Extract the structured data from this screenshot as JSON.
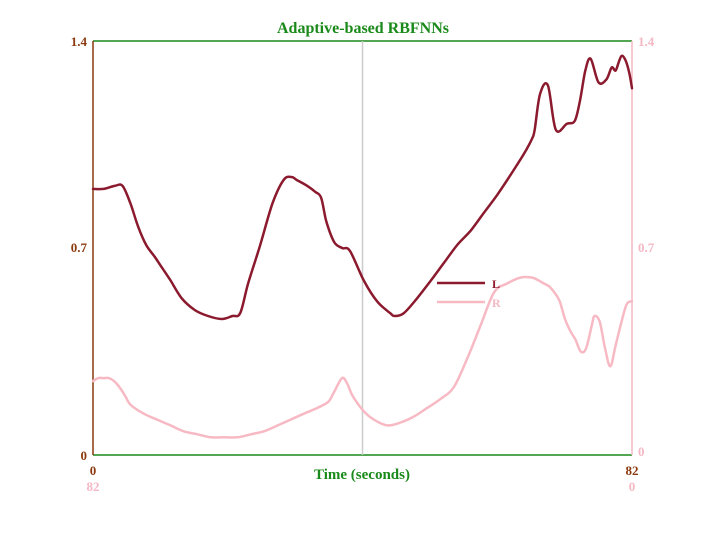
{
  "chart_data": {
    "type": "line",
    "title": "Adaptive-based RBFNNs",
    "xlabel": "Time (seconds)",
    "x_range": [
      0,
      82
    ],
    "x2_range": [
      82,
      0
    ],
    "ylim": [
      0,
      1.4
    ],
    "y2lim": [
      0,
      1.4
    ],
    "x_ticks": [
      "0",
      "82"
    ],
    "x2_ticks": [
      "82",
      "0"
    ],
    "y_ticks": [
      "0",
      "0.7",
      "1.4"
    ],
    "y2_ticks": [
      "0",
      "0.7",
      "1.4"
    ],
    "vline_x": 41,
    "grid": false,
    "legend_position": "center-right",
    "colors": {
      "title": "#1a8a1a",
      "xlabel": "#1a8a1a",
      "frame_top": "#1a8a1a",
      "left_axis": "#8b3a0f",
      "right_axis": "#f4b8c4",
      "vline": "#cccccc",
      "L": "#8b1a2e",
      "R": "#f7b9c3"
    },
    "series": [
      {
        "name": "L",
        "axis": "left",
        "x": [
          0,
          1.6,
          3.3,
          4.5,
          5.7,
          6.9,
          8.1,
          9.4,
          10.6,
          11.8,
          13.5,
          15.5,
          17.5,
          19.6,
          21.2,
          22.4,
          23.6,
          25.3,
          27.3,
          29.0,
          30.2,
          31.0,
          32.6,
          33.8,
          34.7,
          35.5,
          36.7,
          37.9,
          39.1,
          41.2,
          43.2,
          45.2,
          45.9,
          47.3,
          49.3,
          51.4,
          53.4,
          55.4,
          57.5,
          59.5,
          61.5,
          63.6,
          65.6,
          66.8,
          67.2,
          68.0,
          69.2,
          70.4,
          72.1,
          73.3,
          74.1,
          74.9,
          75.7,
          76.9,
          78.1,
          78.9,
          79.5,
          80.0,
          80.5,
          81.1,
          81.6,
          82.0
        ],
        "y": [
          0.9,
          0.9,
          0.91,
          0.91,
          0.85,
          0.77,
          0.71,
          0.67,
          0.63,
          0.59,
          0.53,
          0.49,
          0.47,
          0.46,
          0.47,
          0.48,
          0.58,
          0.7,
          0.85,
          0.93,
          0.94,
          0.93,
          0.91,
          0.89,
          0.87,
          0.79,
          0.72,
          0.7,
          0.69,
          0.59,
          0.52,
          0.48,
          0.47,
          0.48,
          0.53,
          0.59,
          0.65,
          0.71,
          0.76,
          0.82,
          0.88,
          0.95,
          1.02,
          1.07,
          1.1,
          1.22,
          1.25,
          1.1,
          1.12,
          1.13,
          1.2,
          1.3,
          1.34,
          1.26,
          1.27,
          1.31,
          1.3,
          1.33,
          1.35,
          1.33,
          1.29,
          1.24
        ]
      },
      {
        "name": "R",
        "axis": "right",
        "x": [
          82,
          81.2,
          80.4,
          79.6,
          78.8,
          78.0,
          77.1,
          76.3,
          74.3,
          72.3,
          70.2,
          68.2,
          66.1,
          64.1,
          62.1,
          60.0,
          58.0,
          56.0,
          53.9,
          51.9,
          49.9,
          47.8,
          46.2,
          45.4,
          44.1,
          43.3,
          42.5,
          40.9,
          39.3,
          37.2,
          35.2,
          33.2,
          31.1,
          29.1,
          27.1,
          25.0,
          23.0,
          21.0,
          19.0,
          17.0,
          15.2,
          14.2,
          13.4,
          12.6,
          11.8,
          11.0,
          10.2,
          9.4,
          8.6,
          7.8,
          7.0,
          6.1,
          5.7,
          4.9,
          4.1,
          3.3,
          2.5,
          1.6,
          0.8,
          0
        ],
        "y": [
          0.25,
          0.26,
          0.26,
          0.26,
          0.25,
          0.23,
          0.2,
          0.17,
          0.14,
          0.12,
          0.1,
          0.08,
          0.07,
          0.06,
          0.06,
          0.06,
          0.07,
          0.08,
          0.1,
          0.12,
          0.14,
          0.16,
          0.18,
          0.21,
          0.26,
          0.24,
          0.2,
          0.15,
          0.12,
          0.1,
          0.11,
          0.13,
          0.16,
          0.19,
          0.23,
          0.33,
          0.44,
          0.55,
          0.58,
          0.6,
          0.6,
          0.59,
          0.58,
          0.57,
          0.55,
          0.52,
          0.46,
          0.42,
          0.39,
          0.35,
          0.36,
          0.44,
          0.47,
          0.45,
          0.36,
          0.3,
          0.37,
          0.45,
          0.51,
          0.52
        ]
      }
    ]
  }
}
